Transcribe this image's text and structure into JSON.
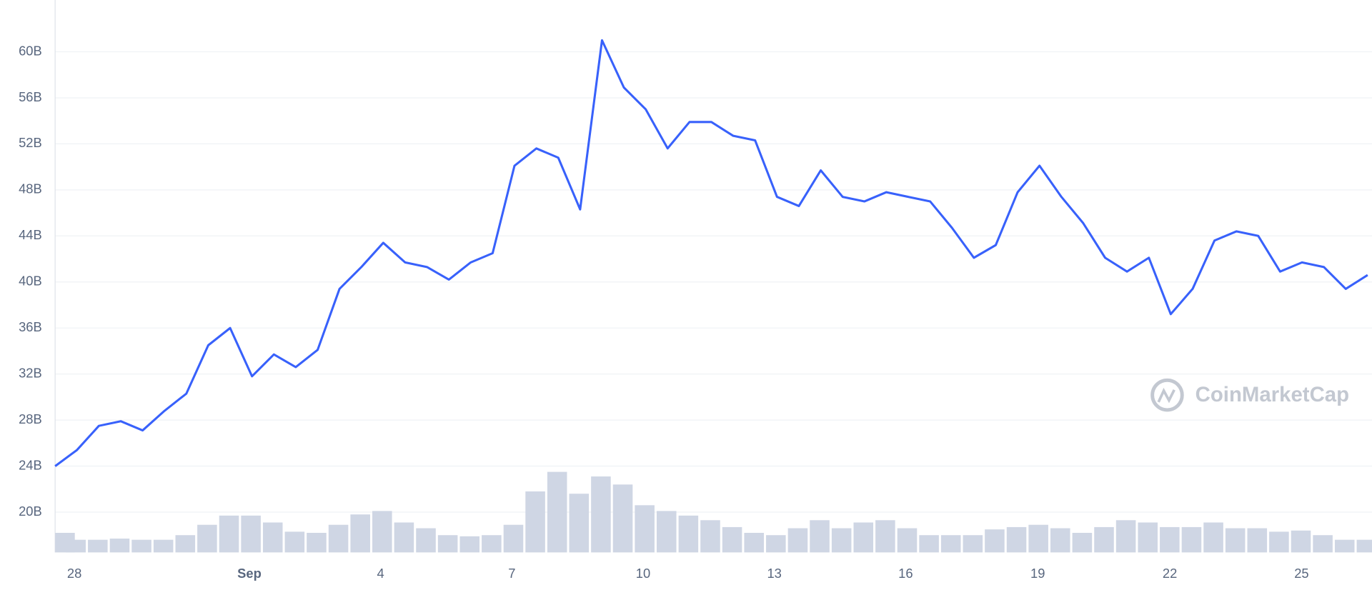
{
  "chart_data": {
    "type": "line",
    "watermark": "CoinMarketCap",
    "xlim": [
      0,
      60
    ],
    "xticks": [
      {
        "value": 0.88,
        "label": "28"
      },
      {
        "value": 8.88,
        "label": "Sep"
      },
      {
        "value": 14.88,
        "label": "4"
      },
      {
        "value": 20.88,
        "label": "7"
      },
      {
        "value": 26.88,
        "label": "10"
      },
      {
        "value": 32.88,
        "label": "13"
      },
      {
        "value": 38.88,
        "label": "16"
      },
      {
        "value": 44.92,
        "label": "19"
      },
      {
        "value": 50.96,
        "label": "22"
      },
      {
        "value": 56.98,
        "label": "25"
      }
    ],
    "ylim": [
      16.5,
      64.5
    ],
    "yticks": [
      {
        "value": 20,
        "label": "20B"
      },
      {
        "value": 24,
        "label": "24B"
      },
      {
        "value": 28,
        "label": "28B"
      },
      {
        "value": 32,
        "label": "32B"
      },
      {
        "value": 36,
        "label": "36B"
      },
      {
        "value": 40,
        "label": "40B"
      },
      {
        "value": 44,
        "label": "44B"
      },
      {
        "value": 48,
        "label": "48B"
      },
      {
        "value": 52,
        "label": "52B"
      },
      {
        "value": 56,
        "label": "56B"
      },
      {
        "value": 60,
        "label": "60B"
      }
    ],
    "grid": true,
    "series": [
      {
        "color": "#3861fb",
        "values": [
          24,
          25.4,
          27.5,
          27.9,
          27.1,
          28.8,
          30.3,
          34.5,
          36,
          31.8,
          33.7,
          32.6,
          34.1,
          39.4,
          41.3,
          43.4,
          41.7,
          41.3,
          40.2,
          41.7,
          42.5,
          50.1,
          51.6,
          50.8,
          46.3,
          61,
          56.9,
          55,
          51.6,
          53.9,
          53.9,
          52.7,
          52.3,
          47.4,
          46.6,
          49.7,
          47.4,
          47,
          47.8,
          47.4,
          47,
          44.7,
          42.1,
          43.2,
          47.8,
          50.1,
          47.4,
          45.1,
          42.1,
          40.9,
          42.1,
          37.2,
          39.4,
          43.6,
          44.4,
          44,
          40.9,
          41.7,
          41.3,
          39.4,
          40.6
        ]
      },
      {
        "type": "bar",
        "color": "#cfd6e4",
        "values": [
          18.2,
          17.6,
          17.6,
          17.7,
          17.6,
          17.6,
          18.0,
          18.9,
          19.7,
          19.7,
          19.1,
          18.3,
          18.2,
          18.9,
          19.8,
          20.1,
          19.1,
          18.6,
          18.0,
          17.9,
          18.0,
          18.9,
          21.8,
          23.5,
          21.6,
          23.1,
          22.4,
          20.6,
          20.1,
          19.7,
          19.3,
          18.7,
          18.2,
          18.0,
          18.6,
          19.3,
          18.6,
          19.1,
          19.3,
          18.6,
          18.0,
          18.0,
          18.0,
          18.5,
          18.7,
          18.9,
          18.6,
          18.2,
          18.7,
          19.3,
          19.1,
          18.7,
          18.7,
          19.1,
          18.6,
          18.6,
          18.3,
          18.4,
          18.0,
          17.6,
          17.6
        ]
      }
    ]
  }
}
